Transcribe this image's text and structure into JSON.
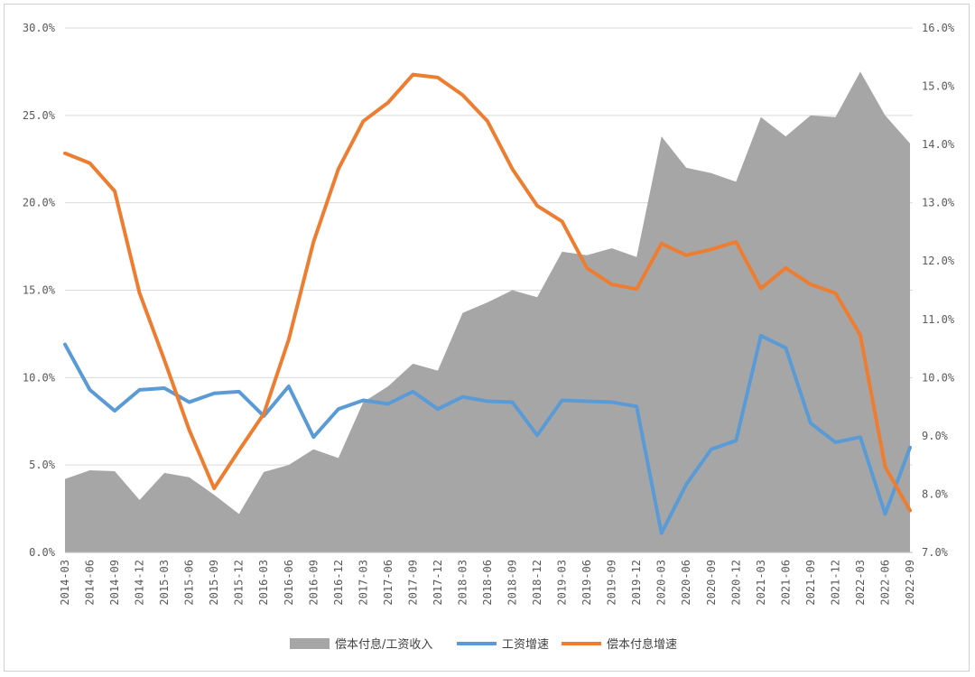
{
  "chart_data": {
    "type": "area",
    "categories": [
      "2014-03",
      "2014-06",
      "2014-09",
      "2014-12",
      "2015-03",
      "2015-06",
      "2015-09",
      "2015-12",
      "2016-03",
      "2016-06",
      "2016-09",
      "2016-12",
      "2017-03",
      "2017-06",
      "2017-09",
      "2017-12",
      "2018-03",
      "2018-06",
      "2018-09",
      "2018-12",
      "2019-03",
      "2019-06",
      "2019-09",
      "2019-12",
      "2020-03",
      "2020-06",
      "2020-09",
      "2020-12",
      "2021-03",
      "2021-06",
      "2021-09",
      "2021-12",
      "2022-03",
      "2022-06",
      "2022-09"
    ],
    "y_left": {
      "range": [
        0,
        30
      ],
      "ticks": [
        "0.0%",
        "5.0%",
        "10.0%",
        "15.0%",
        "20.0%",
        "25.0%",
        "30.0%"
      ]
    },
    "y_right": {
      "range": [
        7,
        16
      ],
      "ticks": [
        "7.0%",
        "8.0%",
        "9.0%",
        "10.0%",
        "11.0%",
        "12.0%",
        "13.0%",
        "14.0%",
        "15.0%",
        "16.0%"
      ]
    },
    "grid": true,
    "legend_position": "bottom",
    "series": [
      {
        "name": "偿本付息/工资收入",
        "type": "area",
        "axis": "left",
        "color": "#a6a6a6",
        "values": [
          4.2,
          4.7,
          4.65,
          3.0,
          4.55,
          4.3,
          3.3,
          2.2,
          4.6,
          5.0,
          5.9,
          5.4,
          8.6,
          9.5,
          10.8,
          10.4,
          13.7,
          14.3,
          15.0,
          14.6,
          17.2,
          17.0,
          17.4,
          16.9,
          23.8,
          22.0,
          21.7,
          21.2,
          24.9,
          23.8,
          25.0,
          24.9,
          27.5,
          25.0,
          23.4
        ]
      },
      {
        "name": "工资增速",
        "type": "line",
        "axis": "left",
        "color": "#5b9bd5",
        "values": [
          11.9,
          9.3,
          8.1,
          9.3,
          9.4,
          8.6,
          9.1,
          9.2,
          7.8,
          9.5,
          6.6,
          8.2,
          8.7,
          8.5,
          9.2,
          8.2,
          8.9,
          8.65,
          8.6,
          6.7,
          8.7,
          8.65,
          8.6,
          8.35,
          1.1,
          3.9,
          5.9,
          6.4,
          12.4,
          11.7,
          7.4,
          6.3,
          6.6,
          2.2,
          6.0
        ]
      },
      {
        "name": "偿本付息增速",
        "type": "line",
        "axis": "right",
        "color": "#ed7d31",
        "values": [
          13.85,
          13.68,
          13.2,
          11.45,
          10.3,
          9.1,
          8.1,
          8.75,
          9.38,
          10.65,
          12.33,
          13.58,
          14.4,
          14.72,
          15.2,
          15.15,
          14.85,
          14.4,
          13.58,
          12.95,
          12.68,
          11.88,
          11.6,
          11.52,
          12.3,
          12.1,
          12.2,
          12.33,
          11.53,
          11.88,
          11.6,
          11.45,
          10.73,
          8.47,
          7.72
        ]
      }
    ]
  }
}
